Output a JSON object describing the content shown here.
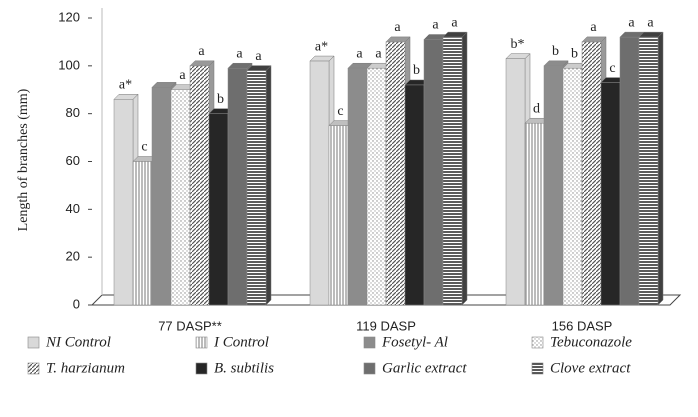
{
  "chart_data": {
    "type": "bar",
    "y_label": "Length of branches (mm)",
    "categories": [
      "77 DASP**",
      "119 DASP",
      "156 DASP"
    ],
    "ylim": [
      0,
      120
    ],
    "yticks": [
      0,
      20,
      40,
      60,
      80,
      100,
      120
    ],
    "grid": false,
    "series": [
      {
        "name": "NI Control",
        "color": "#d9d9d9",
        "values": [
          86,
          102,
          103
        ],
        "letters": [
          "a*",
          "a*",
          "b*"
        ]
      },
      {
        "name": "I Control",
        "color": "#bfbfbf",
        "pattern": "vstripes",
        "values": [
          60,
          75,
          76
        ],
        "letters": [
          "c",
          "c",
          "d"
        ]
      },
      {
        "name": "Fosetyl- Al",
        "color": "#8c8c8c",
        "values": [
          91,
          99,
          100
        ],
        "letters": [
          null,
          "a",
          "b"
        ]
      },
      {
        "name": "Tebuconazole",
        "color": "#cccccc",
        "pattern": "dots",
        "values": [
          90,
          99,
          99
        ],
        "letters": [
          "a",
          "a",
          "b"
        ]
      },
      {
        "name": "T. harzianum",
        "color": "#999999",
        "pattern": "diag",
        "values": [
          100,
          110,
          110
        ],
        "letters": [
          "a",
          "a",
          "a"
        ]
      },
      {
        "name": "B. subtilis",
        "color": "#262626",
        "values": [
          80,
          92,
          93
        ],
        "letters": [
          "b",
          "b",
          "c"
        ]
      },
      {
        "name": "Garlic extract",
        "color": "#6e6e6e",
        "values": [
          99,
          111,
          112
        ],
        "letters": [
          "a",
          "a",
          "a"
        ]
      },
      {
        "name": "Clove extract",
        "color": "#404040",
        "pattern": "hstripes",
        "values": [
          98,
          112,
          112
        ],
        "letters": [
          "a",
          "a",
          "a"
        ]
      }
    ]
  }
}
